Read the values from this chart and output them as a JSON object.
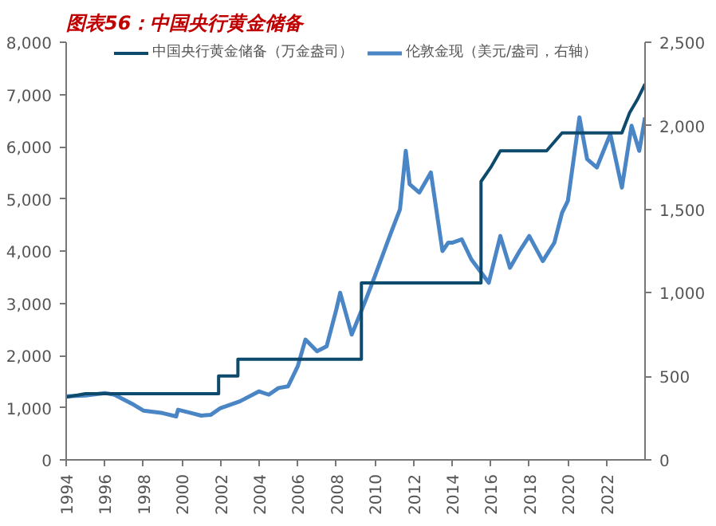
{
  "chart_data": {
    "type": "line",
    "title": "图表56：中国央行黄金储备",
    "xlim": [
      1994,
      2024
    ],
    "xticks": [
      1994,
      1996,
      1998,
      2000,
      2002,
      2004,
      2006,
      2008,
      2010,
      2012,
      2014,
      2016,
      2018,
      2020,
      2022
    ],
    "ylim": [
      0,
      8000
    ],
    "yticks": [
      {
        "value": 0,
        "label": "0"
      },
      {
        "value": 1000,
        "label": "1,000"
      },
      {
        "value": 2000,
        "label": "2,000"
      },
      {
        "value": 3000,
        "label": "3,000"
      },
      {
        "value": 4000,
        "label": "4,000"
      },
      {
        "value": 5000,
        "label": "5,000"
      },
      {
        "value": 6000,
        "label": "6,000"
      },
      {
        "value": 7000,
        "label": "7,000"
      },
      {
        "value": 8000,
        "label": "8,000"
      }
    ],
    "y2lim": [
      0,
      2500
    ],
    "y2ticks": [
      {
        "value": 0,
        "label": "0"
      },
      {
        "value": 500,
        "label": "500"
      },
      {
        "value": 1000,
        "label": "1,000"
      },
      {
        "value": 1500,
        "label": "1,500"
      },
      {
        "value": 2000,
        "label": "2,000"
      },
      {
        "value": 2500,
        "label": "2,500"
      }
    ],
    "legend": "top",
    "grid": false,
    "line_style": "solid",
    "series": [
      {
        "name": "中国央行黄金储备（万金盎司）",
        "color": "#0d4a6b",
        "x": [
          1994,
          1995,
          2001.9,
          2001.9,
          2002.9,
          2002.9,
          2009.3,
          2009.3,
          2015.5,
          2015.5,
          2016,
          2016.5,
          2018.9,
          2019.7,
          2022.8,
          2023.2,
          2023.6,
          2024
        ],
        "values": [
          1200,
          1267,
          1267,
          1608,
          1608,
          1929,
          1929,
          3389,
          3389,
          5332,
          5600,
          5920,
          5920,
          6264,
          6264,
          6650,
          6900,
          7200
        ]
      },
      {
        "name": "伦敦金现（美元/盎司，右轴）",
        "color": "#4a86c5",
        "axis": "y2",
        "x": [
          1994,
          1995,
          1996,
          1996.5,
          1997.5,
          1998,
          1999,
          1999.7,
          1999.8,
          2000.5,
          2001,
          2001.5,
          2002,
          2003,
          2004,
          2004.5,
          2005,
          2005.5,
          2006,
          2006.4,
          2007,
          2007.5,
          2008,
          2008.2,
          2008.8,
          2009.5,
          2010,
          2010.8,
          2011.3,
          2011.6,
          2011.8,
          2012.3,
          2012.9,
          2013.5,
          2013.8,
          2014,
          2014.5,
          2015,
          2015.9,
          2016.5,
          2017,
          2017.5,
          2018,
          2018.7,
          2019.3,
          2019.7,
          2020,
          2020.6,
          2021,
          2021.5,
          2022.2,
          2022.8,
          2023.3,
          2023.7,
          2024
        ],
        "values": [
          380,
          385,
          400,
          390,
          330,
          295,
          280,
          260,
          300,
          280,
          265,
          270,
          310,
          350,
          410,
          390,
          430,
          440,
          560,
          720,
          650,
          680,
          900,
          1000,
          750,
          950,
          1100,
          1350,
          1500,
          1850,
          1650,
          1600,
          1720,
          1250,
          1300,
          1300,
          1320,
          1200,
          1060,
          1340,
          1150,
          1250,
          1340,
          1190,
          1300,
          1480,
          1550,
          2050,
          1800,
          1750,
          1950,
          1630,
          2000,
          1850,
          2050
        ]
      }
    ]
  }
}
